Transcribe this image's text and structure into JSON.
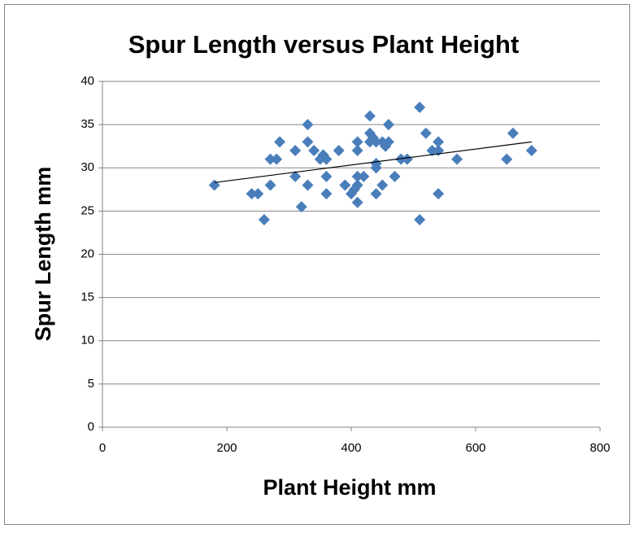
{
  "chart_data": {
    "type": "scatter",
    "title": "Spur Length versus Plant Height",
    "x_label": "Plant Height mm",
    "y_label": "Spur Length mm",
    "series": [
      {
        "name": "Spur Length",
        "color": "#4a7ebb",
        "x": [
          180,
          240,
          250,
          260,
          270,
          270,
          280,
          285,
          310,
          310,
          320,
          330,
          330,
          330,
          340,
          350,
          355,
          360,
          360,
          360,
          380,
          390,
          400,
          405,
          410,
          410,
          410,
          410,
          410,
          420,
          430,
          430,
          430,
          435,
          440,
          440,
          440,
          440,
          450,
          450,
          455,
          460,
          460,
          470,
          480,
          490,
          510,
          510,
          520,
          530,
          540,
          540,
          540,
          570,
          650,
          660,
          690
        ],
        "values": [
          28,
          27,
          27,
          24,
          31,
          28,
          31,
          33,
          29,
          32,
          25.5,
          35,
          33,
          28,
          32,
          31,
          31.5,
          31,
          29,
          27,
          32,
          28,
          27,
          27.5,
          33,
          32,
          29,
          28,
          26,
          29,
          36,
          34,
          33,
          33.5,
          33,
          30.5,
          30,
          27,
          33,
          28,
          32.5,
          35,
          33,
          29,
          31,
          31,
          37,
          24,
          34,
          32,
          33,
          32,
          27,
          31,
          31,
          34,
          32
        ]
      }
    ],
    "trendline": {
      "x": [
        180,
        690
      ],
      "values": [
        28.3,
        33
      ]
    },
    "xlim": [
      0,
      800
    ],
    "xticks": [
      0,
      200,
      400,
      600,
      800
    ],
    "ylim": [
      0,
      40
    ],
    "yticks": [
      0,
      5,
      10,
      15,
      20,
      25,
      30,
      35,
      40
    ],
    "grid": true
  }
}
